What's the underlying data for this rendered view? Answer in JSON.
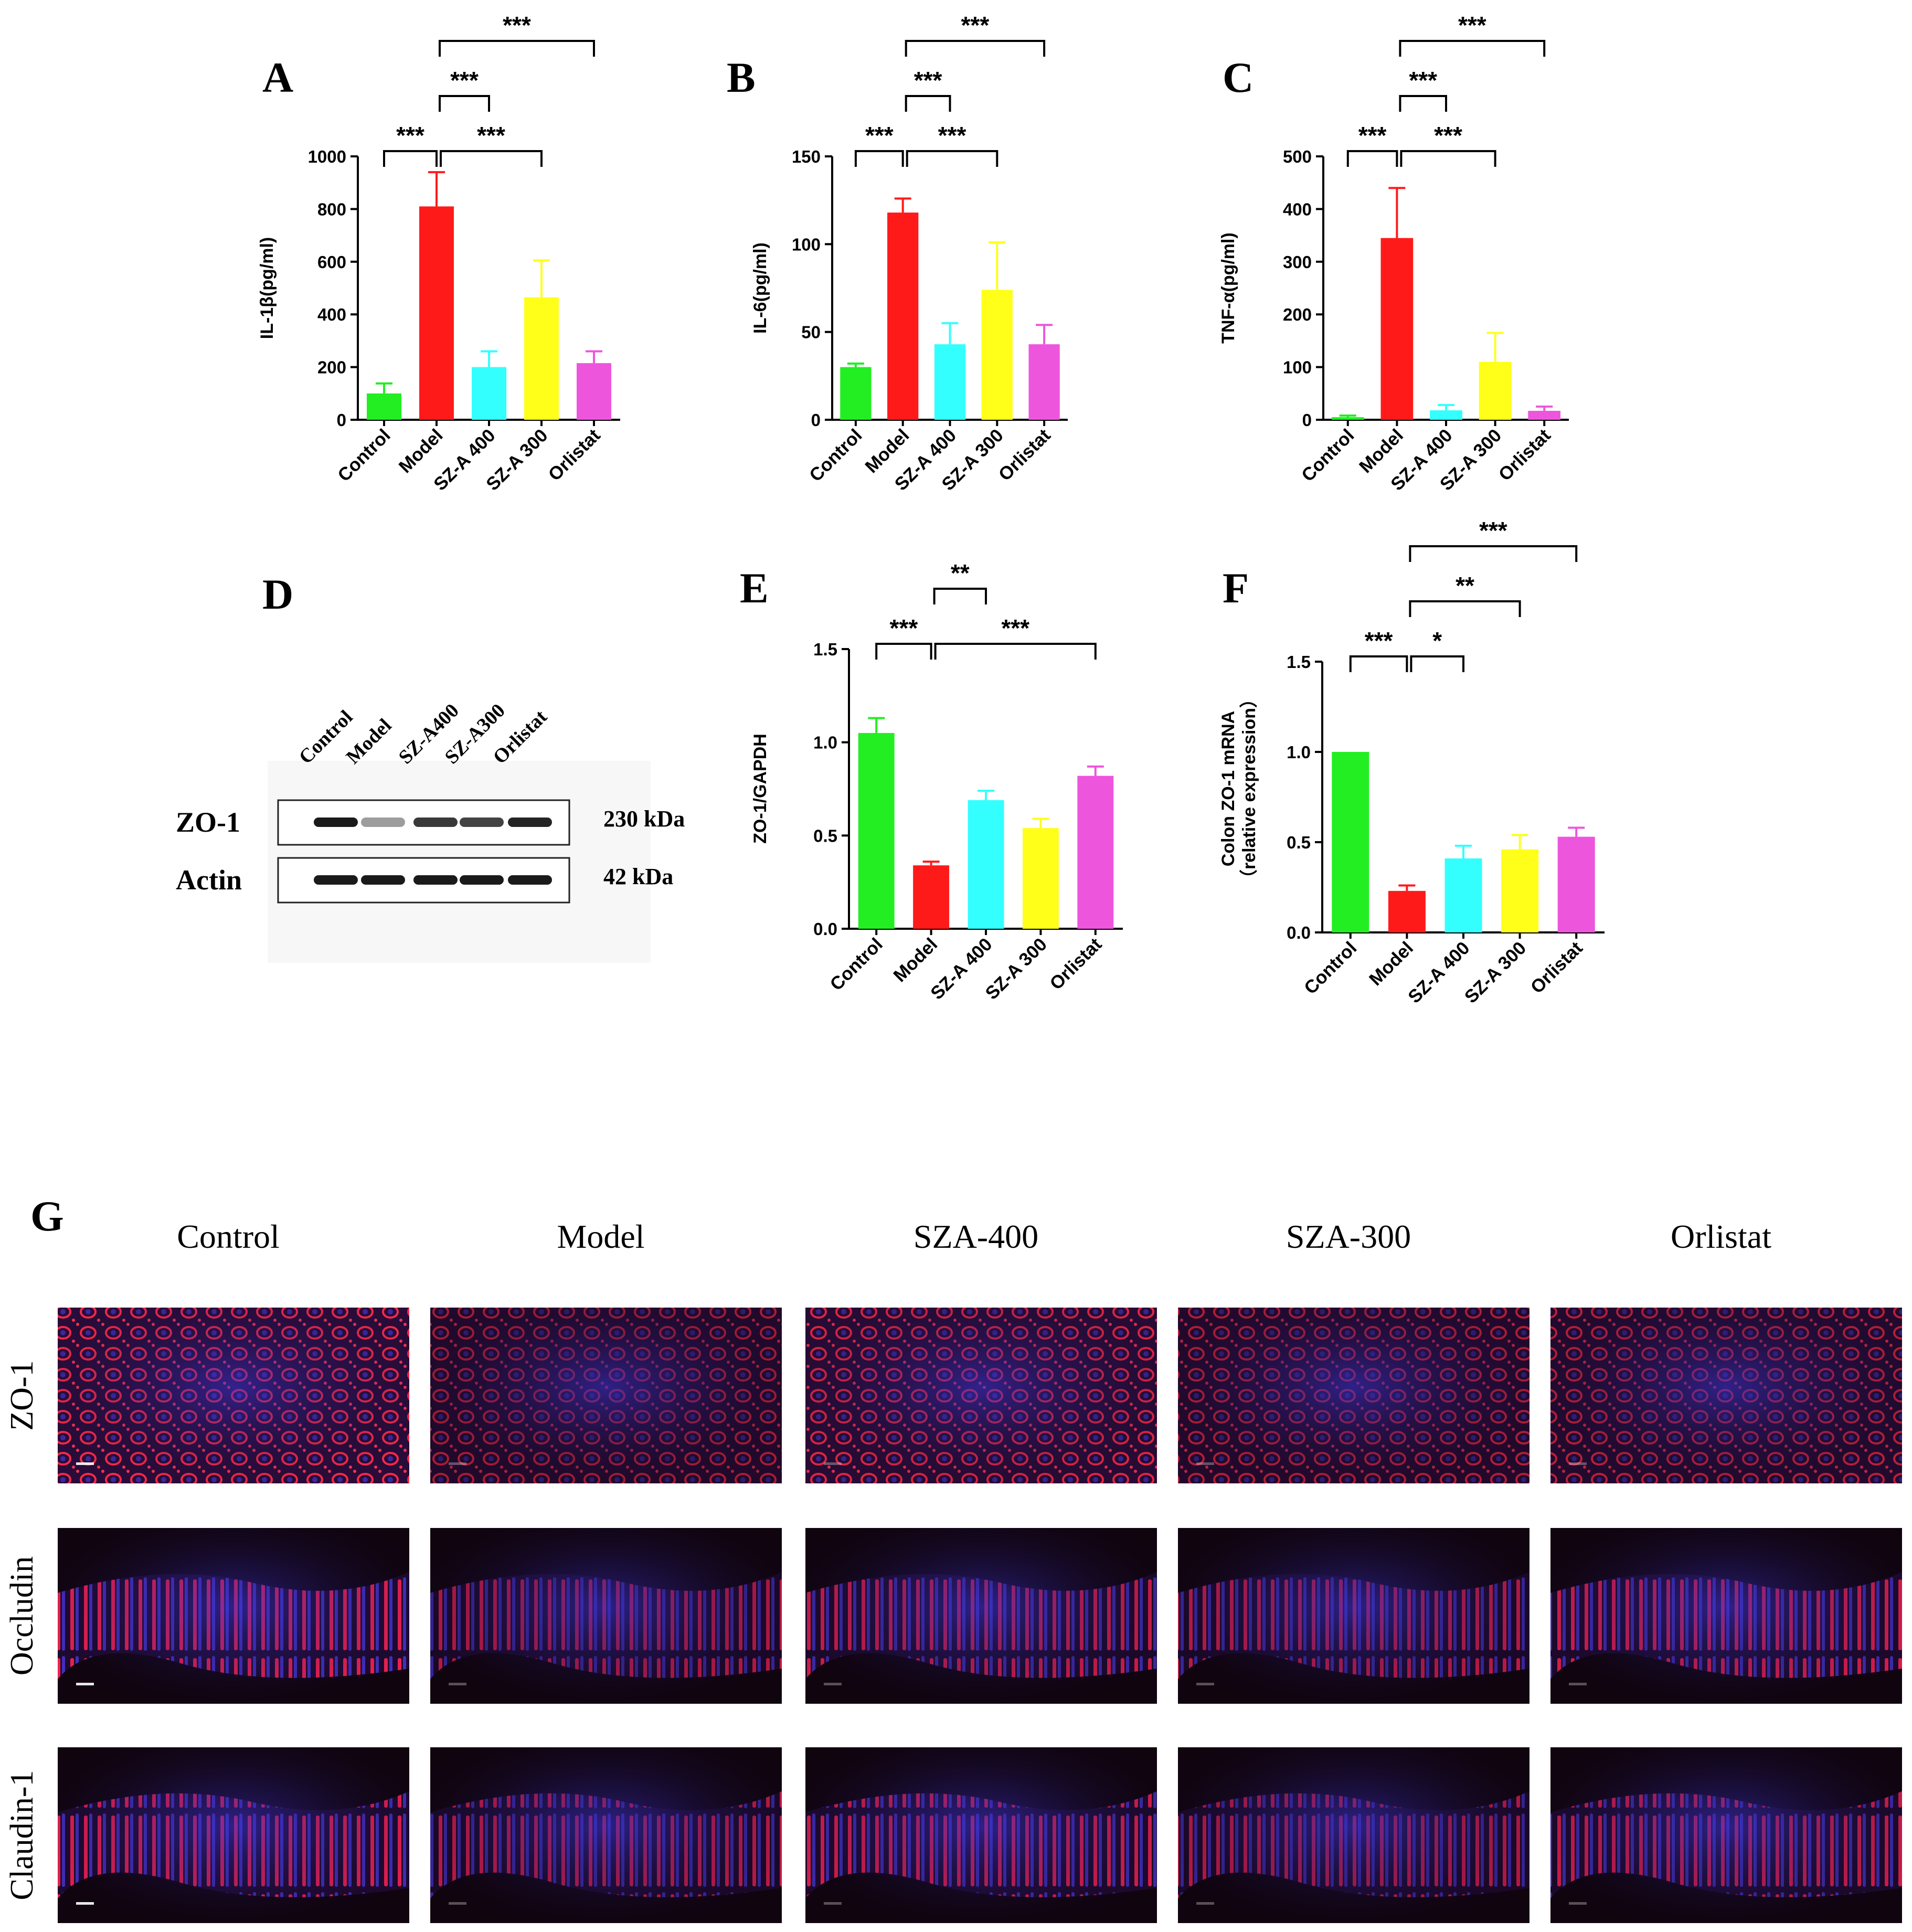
{
  "colors": {
    "control": "#22ee22",
    "model": "#ff1a1a",
    "sza400": "#33ffff",
    "sza300": "#ffff1a",
    "orlistat": "#ee55dd"
  },
  "chart_data": [
    {
      "panel": "A",
      "type": "bar",
      "ylabel": "IL-1β(pg/ml)",
      "categories": [
        "Control",
        "Model",
        "SZ-A 400",
        "SZ-A 300",
        "Orlistat"
      ],
      "values": [
        100,
        810,
        200,
        465,
        215
      ],
      "errors": [
        38,
        130,
        60,
        140,
        45
      ],
      "ylim": [
        0,
        1000
      ],
      "yticks": [
        "0",
        "200",
        "400",
        "600",
        "800",
        "1000"
      ],
      "significance": [
        {
          "from": 0,
          "to": 1,
          "label": "***",
          "level": 0
        },
        {
          "from": 1,
          "to": 3,
          "label": "***",
          "level": 0
        },
        {
          "from": 1,
          "to": 2,
          "label": "***",
          "level": 1
        },
        {
          "from": 1,
          "to": 4,
          "label": "***",
          "level": 2
        }
      ]
    },
    {
      "panel": "B",
      "type": "bar",
      "ylabel": "IL-6(pg/ml)",
      "categories": [
        "Control",
        "Model",
        "SZ-A 400",
        "SZ-A 300",
        "Orlistat"
      ],
      "values": [
        30,
        118,
        43,
        74,
        43
      ],
      "errors": [
        2,
        8,
        12,
        27,
        11
      ],
      "ylim": [
        0,
        150
      ],
      "yticks": [
        "0",
        "50",
        "100",
        "150"
      ],
      "significance": [
        {
          "from": 0,
          "to": 1,
          "label": "***",
          "level": 0
        },
        {
          "from": 1,
          "to": 3,
          "label": "***",
          "level": 0
        },
        {
          "from": 1,
          "to": 2,
          "label": "***",
          "level": 1
        },
        {
          "from": 1,
          "to": 4,
          "label": "***",
          "level": 2
        }
      ]
    },
    {
      "panel": "C",
      "type": "bar",
      "ylabel": "TNF-α(pg/ml)",
      "categories": [
        "Control",
        "Model",
        "SZ-A 400",
        "SZ-A 300",
        "Orlistat"
      ],
      "values": [
        5,
        345,
        18,
        110,
        17
      ],
      "errors": [
        3,
        95,
        10,
        55,
        8
      ],
      "ylim": [
        0,
        500
      ],
      "yticks": [
        "0",
        "100",
        "200",
        "300",
        "400",
        "500"
      ],
      "significance": [
        {
          "from": 0,
          "to": 1,
          "label": "***",
          "level": 0
        },
        {
          "from": 1,
          "to": 3,
          "label": "***",
          "level": 0
        },
        {
          "from": 1,
          "to": 2,
          "label": "***",
          "level": 1
        },
        {
          "from": 1,
          "to": 4,
          "label": "***",
          "level": 2
        }
      ]
    },
    {
      "panel": "E",
      "type": "bar",
      "ylabel": "ZO-1/GAPDH",
      "categories": [
        "Control",
        "Model",
        "SZ-A 400",
        "SZ-A 300",
        "Orlistat"
      ],
      "values": [
        1.05,
        0.34,
        0.69,
        0.54,
        0.82
      ],
      "errors": [
        0.08,
        0.02,
        0.05,
        0.05,
        0.05
      ],
      "ylim": [
        0,
        1.5
      ],
      "yticks": [
        "0.0",
        "0.5",
        "1.0",
        "1.5"
      ],
      "significance": [
        {
          "from": 0,
          "to": 1,
          "label": "***",
          "level": 0
        },
        {
          "from": 1,
          "to": 4,
          "label": "***",
          "level": 0
        },
        {
          "from": 1,
          "to": 2,
          "label": "**",
          "level": 1
        }
      ]
    },
    {
      "panel": "F",
      "type": "bar",
      "ylabel": "Colon ZO-1 mRNA",
      "ylabel2": "（relative  expression）",
      "categories": [
        "Control",
        "Model",
        "SZ-A 400",
        "SZ-A 300",
        "Orlistat"
      ],
      "values": [
        1.0,
        0.23,
        0.41,
        0.46,
        0.53
      ],
      "errors": [
        0.0,
        0.03,
        0.07,
        0.08,
        0.05
      ],
      "ylim": [
        0,
        1.5
      ],
      "yticks": [
        "0.0",
        "0.5",
        "1.0",
        "1.5"
      ],
      "significance": [
        {
          "from": 0,
          "to": 1,
          "label": "***",
          "level": 0
        },
        {
          "from": 1,
          "to": 2,
          "label": "*",
          "level": 0
        },
        {
          "from": 1,
          "to": 3,
          "label": "**",
          "level": 1
        },
        {
          "from": 1,
          "to": 4,
          "label": "***",
          "level": 2
        }
      ]
    }
  ],
  "western_blot": {
    "panel": "D",
    "lanes": [
      "Control",
      "Model",
      "SZ-A400",
      "SZ-A300",
      "Orlistat"
    ],
    "rows": [
      {
        "protein": "ZO-1",
        "size": "230 kDa",
        "intensities": [
          0.95,
          0.3,
          0.8,
          0.75,
          0.9
        ]
      },
      {
        "protein": "Actin",
        "size": "42 kDa",
        "intensities": [
          0.95,
          0.95,
          0.95,
          0.95,
          0.95
        ]
      }
    ]
  },
  "immunofluorescence": {
    "panel": "G",
    "columns": [
      "Control",
      "Model",
      "SZA-400",
      "SZA-300",
      "Orlistat"
    ],
    "rows": [
      "ZO-1",
      "Occludin",
      "Claudin-1"
    ],
    "red_intensity": [
      [
        0.95,
        0.45,
        0.8,
        0.5,
        0.55
      ],
      [
        0.9,
        0.55,
        0.7,
        0.6,
        0.75
      ],
      [
        0.85,
        0.6,
        0.75,
        0.55,
        0.7
      ]
    ]
  }
}
